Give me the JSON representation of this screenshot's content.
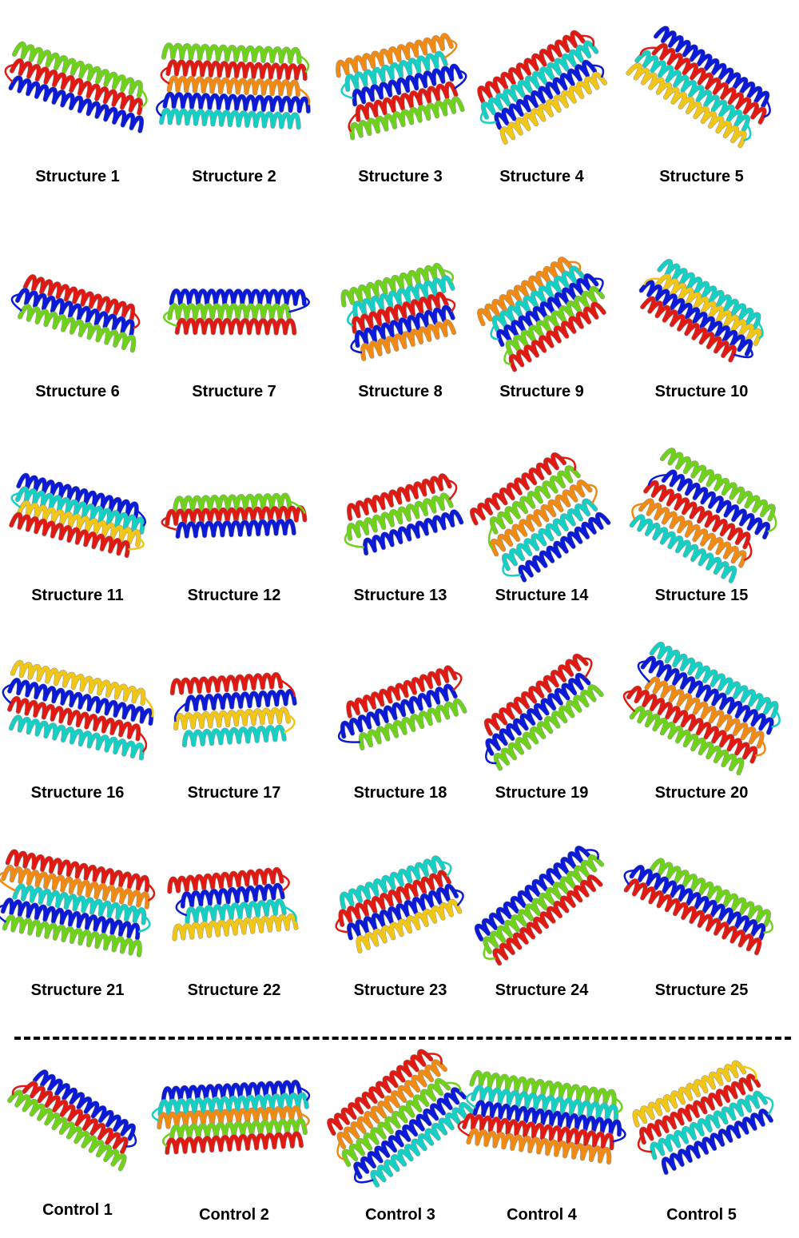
{
  "figure": {
    "structures_heading": "",
    "controls_heading": ""
  },
  "palette": [
    "#0a1ad6",
    "#1565e6",
    "#17a8e8",
    "#14d0c4",
    "#1ac24a",
    "#6fd21a",
    "#cfe018",
    "#f2c615",
    "#f08a12",
    "#e85a12",
    "#e01a12"
  ],
  "structures": [
    {
      "label": "Structure 1"
    },
    {
      "label": "Structure 2"
    },
    {
      "label": "Structure 3"
    },
    {
      "label": "Structure 4"
    },
    {
      "label": "Structure 5"
    },
    {
      "label": "Structure 6"
    },
    {
      "label": "Structure 7"
    },
    {
      "label": "Structure 8"
    },
    {
      "label": "Structure 9"
    },
    {
      "label": "Structure 10"
    },
    {
      "label": "Structure 11"
    },
    {
      "label": "Structure 12"
    },
    {
      "label": "Structure 13"
    },
    {
      "label": "Structure 14"
    },
    {
      "label": "Structure 15"
    },
    {
      "label": "Structure 16"
    },
    {
      "label": "Structure 17"
    },
    {
      "label": "Structure 18"
    },
    {
      "label": "Structure 19"
    },
    {
      "label": "Structure 20"
    },
    {
      "label": "Structure 21"
    },
    {
      "label": "Structure 22"
    },
    {
      "label": "Structure 23"
    },
    {
      "label": "Structure 24"
    },
    {
      "label": "Structure 25"
    }
  ],
  "controls": [
    {
      "label": "Control 1"
    },
    {
      "label": "Control 2"
    },
    {
      "label": "Control 3"
    },
    {
      "label": "Control 4"
    },
    {
      "label": "Control 5"
    }
  ]
}
